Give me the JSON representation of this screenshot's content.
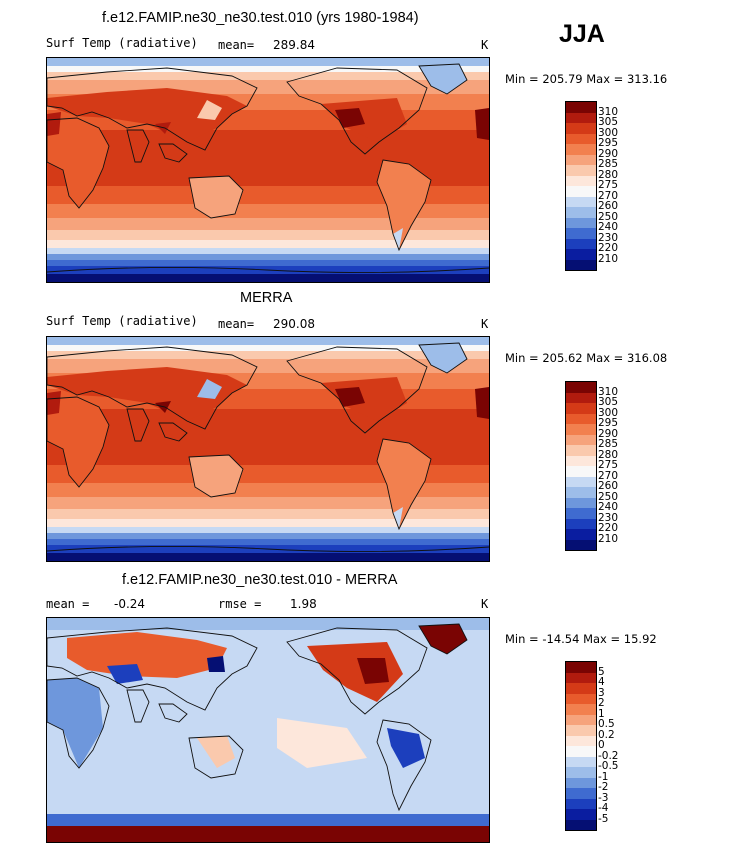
{
  "season": "JJA",
  "panels": [
    {
      "title": "f.e12.FAMIP.ne30_ne30.test.010 (yrs 1980-1984)",
      "variable": "Surf Temp (radiative)",
      "mean_label": "mean=",
      "mean_value": "289.84",
      "units": "K",
      "minmax": "Min = 205.79 Max = 313.16"
    },
    {
      "title": "MERRA",
      "variable": "Surf Temp (radiative)",
      "mean_label": "mean=",
      "mean_value": "290.08",
      "units": "K",
      "minmax": "Min = 205.62 Max = 316.08"
    },
    {
      "title": "f.e12.FAMIP.ne30_ne30.test.010 - MERRA",
      "mean_label": "mean =",
      "mean_value": "-0.24",
      "rmse_label": "rmse =",
      "rmse_value": "1.98",
      "units": "K",
      "minmax": "Min = -14.54 Max = 15.92"
    }
  ],
  "colorbar_temp": {
    "labels": [
      "310",
      "305",
      "300",
      "295",
      "290",
      "285",
      "280",
      "275",
      "270",
      "260",
      "250",
      "240",
      "230",
      "220",
      "210"
    ],
    "colors": [
      "#7a0403",
      "#b11b0e",
      "#d43a17",
      "#e85b2c",
      "#f2804f",
      "#f6a37c",
      "#fac9ad",
      "#fde7db",
      "#f8f8f8",
      "#c6d9f3",
      "#9dbde9",
      "#6e97dc",
      "#3f6bd0",
      "#1c3fbd",
      "#0a1da0",
      "#050f73"
    ]
  },
  "colorbar_diff": {
    "labels": [
      "5",
      "4",
      "3",
      "2",
      "1",
      "0.5",
      "0.2",
      "0",
      "-0.2",
      "-0.5",
      "-1",
      "-2",
      "-3",
      "-4",
      "-5"
    ],
    "colors": [
      "#7a0403",
      "#b11b0e",
      "#d43a17",
      "#e85b2c",
      "#f2804f",
      "#f6a37c",
      "#fac9ad",
      "#fde7db",
      "#f8f8f8",
      "#c6d9f3",
      "#9dbde9",
      "#6e97dc",
      "#3f6bd0",
      "#1c3fbd",
      "#0a1da0",
      "#050f73"
    ]
  },
  "chart_data": [
    {
      "type": "heatmap",
      "title": "f.e12.FAMIP.ne30_ne30.test.010 (yrs 1980-1984)",
      "variable": "Surf Temp (radiative)",
      "units": "K",
      "mean": 289.84,
      "min": 205.79,
      "max": 313.16,
      "contour_levels": [
        210,
        220,
        230,
        240,
        250,
        260,
        270,
        275,
        280,
        285,
        290,
        295,
        300,
        305,
        310
      ]
    },
    {
      "type": "heatmap",
      "title": "MERRA",
      "variable": "Surf Temp (radiative)",
      "units": "K",
      "mean": 290.08,
      "min": 205.62,
      "max": 316.08,
      "contour_levels": [
        210,
        220,
        230,
        240,
        250,
        260,
        270,
        275,
        280,
        285,
        290,
        295,
        300,
        305,
        310
      ]
    },
    {
      "type": "heatmap",
      "title": "f.e12.FAMIP.ne30_ne30.test.010 - MERRA",
      "units": "K",
      "mean": -0.24,
      "rmse": 1.98,
      "min": -14.54,
      "max": 15.92,
      "contour_levels": [
        -5,
        -4,
        -3,
        -2,
        -1,
        -0.5,
        -0.2,
        0,
        0.2,
        0.5,
        1,
        2,
        3,
        4,
        5
      ]
    }
  ]
}
